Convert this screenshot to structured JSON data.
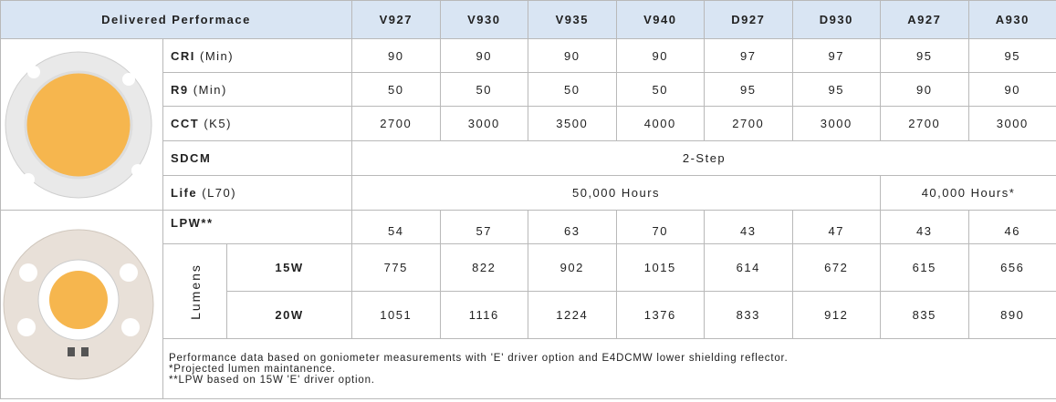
{
  "header": {
    "title": "Delivered Performace",
    "columns": [
      "V927",
      "V930",
      "V935",
      "V940",
      "D927",
      "D930",
      "A927",
      "A930"
    ]
  },
  "rows": [
    {
      "label": "CRI",
      "qualifier": "(Min)",
      "values": [
        90,
        90,
        90,
        90,
        97,
        97,
        95,
        95
      ]
    },
    {
      "label": "R9",
      "qualifier": "(Min)",
      "values": [
        50,
        50,
        50,
        50,
        95,
        95,
        90,
        90
      ]
    },
    {
      "label": "CCT",
      "qualifier": "(K5)",
      "values": [
        2700,
        3000,
        3500,
        4000,
        2700,
        3000,
        2700,
        3000
      ]
    },
    {
      "label": "SDCM",
      "value": "2-Step"
    },
    {
      "label": "Life",
      "qualifier": "(L70)",
      "values": [
        "50,000 Hours",
        "40,000 Hours*"
      ]
    },
    {
      "label": "LPW**",
      "values": [
        54,
        57,
        63,
        70,
        43,
        47,
        43,
        46
      ]
    }
  ],
  "lumens": {
    "label": "Lumens",
    "rows": [
      {
        "label": "15W",
        "values": [
          775,
          822,
          902,
          1015,
          614,
          672,
          615,
          656
        ]
      },
      {
        "label": "20W",
        "values": [
          1051,
          1116,
          1224,
          1376,
          833,
          912,
          835,
          890
        ]
      }
    ]
  },
  "footnotes": [
    "Performance data based on goniometer measurements with 'E' driver option and E4DCMW lower shielding reflector.",
    "*Projected lumen maintanence.",
    "**LPW based on 15W 'E' driver option."
  ]
}
